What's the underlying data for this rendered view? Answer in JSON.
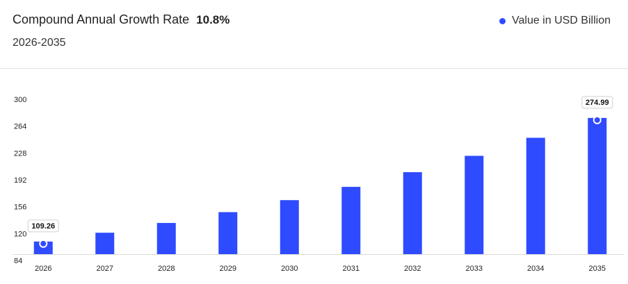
{
  "header": {
    "title": "Compound Annual Growth Rate",
    "cagr": "10.8%",
    "subtitle": "2026-2035"
  },
  "legend": {
    "label": "Value in USD Billion",
    "color": "#2f4bff"
  },
  "chart_data": {
    "type": "bar",
    "categories": [
      "2026",
      "2027",
      "2028",
      "2029",
      "2030",
      "2031",
      "2032",
      "2033",
      "2034",
      "2035"
    ],
    "series": [
      {
        "name": "Value in USD Billion",
        "values": [
          109.26,
          121.1,
          134.2,
          148.7,
          164.8,
          182.6,
          202.3,
          224.2,
          248.4,
          274.99
        ]
      }
    ],
    "labeled_points": [
      {
        "category": "2026",
        "label": "109.26"
      },
      {
        "category": "2035",
        "label": "274.99"
      }
    ],
    "yticks": [
      84,
      120,
      156,
      192,
      228,
      264,
      300
    ],
    "ylim": [
      84,
      300
    ],
    "bar_color": "#2f4bff",
    "grid": false
  }
}
